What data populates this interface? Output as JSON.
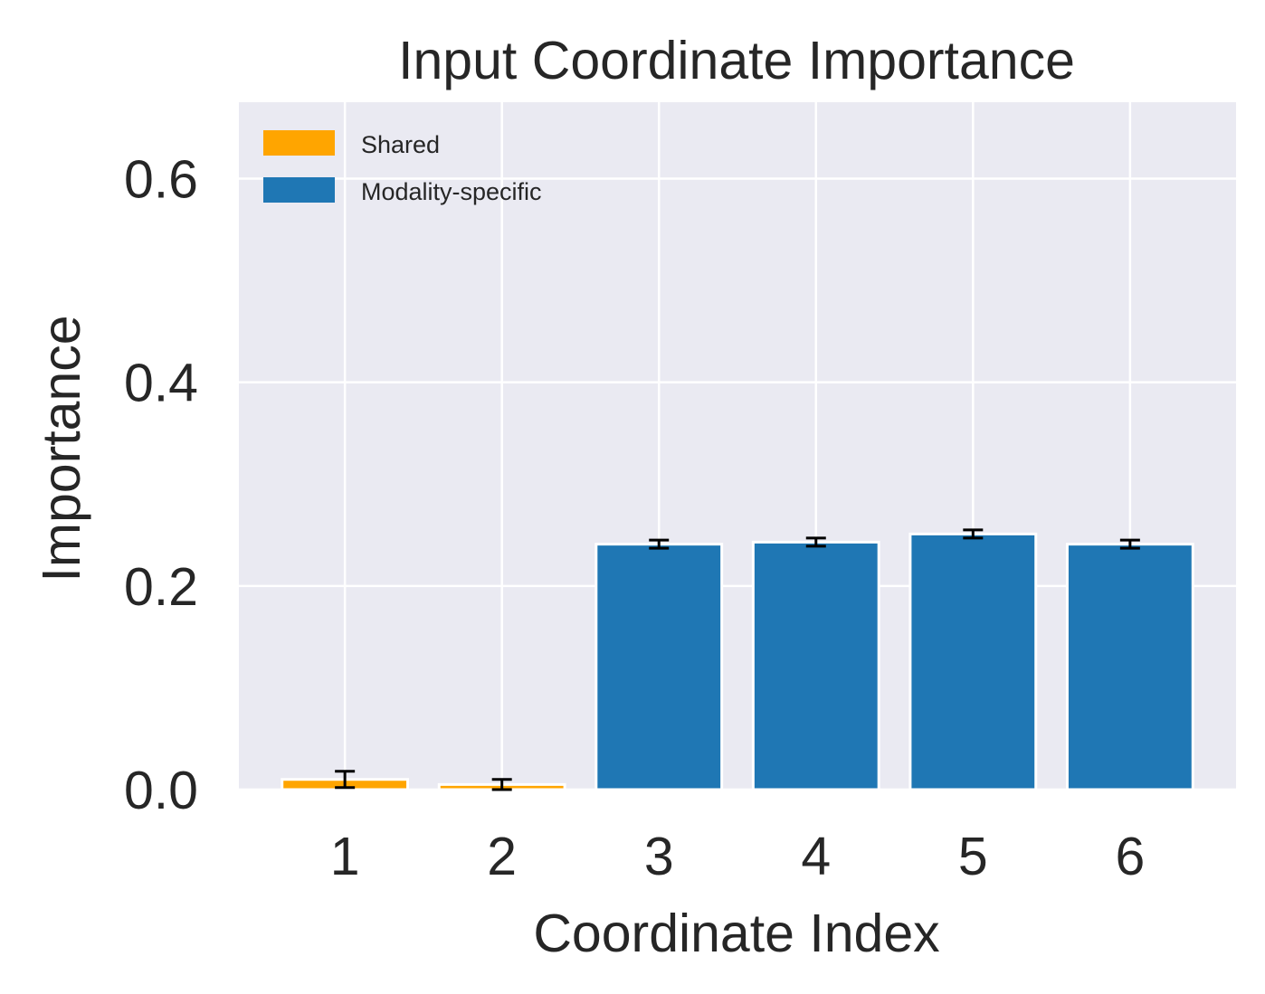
{
  "chart_data": {
    "type": "bar",
    "title": "Input Coordinate Importance",
    "xlabel": "Coordinate Index",
    "ylabel": "Importance",
    "categories": [
      "1",
      "2",
      "3",
      "4",
      "5",
      "6"
    ],
    "values": [
      0.01,
      0.005,
      0.241,
      0.243,
      0.251,
      0.241
    ],
    "errors": [
      0.008,
      0.005,
      0.004,
      0.004,
      0.004,
      0.004
    ],
    "groups": [
      "Shared",
      "Shared",
      "Modality-specific",
      "Modality-specific",
      "Modality-specific",
      "Modality-specific"
    ],
    "legend": {
      "placement": "top-left",
      "entries": [
        {
          "label": "Shared",
          "color": "#ffa500"
        },
        {
          "label": "Modality-specific",
          "color": "#1f77b4"
        }
      ]
    },
    "ylim": [
      0,
      0.675
    ],
    "yticks": [
      0.0,
      0.2,
      0.4,
      0.6
    ],
    "ytick_labels": [
      "0.0",
      "0.2",
      "0.4",
      "0.6"
    ],
    "grid": true,
    "colors": {
      "background": "#eaeaf2",
      "grid": "#ffffff",
      "text": "#262626",
      "error_bar": "#000000"
    }
  }
}
